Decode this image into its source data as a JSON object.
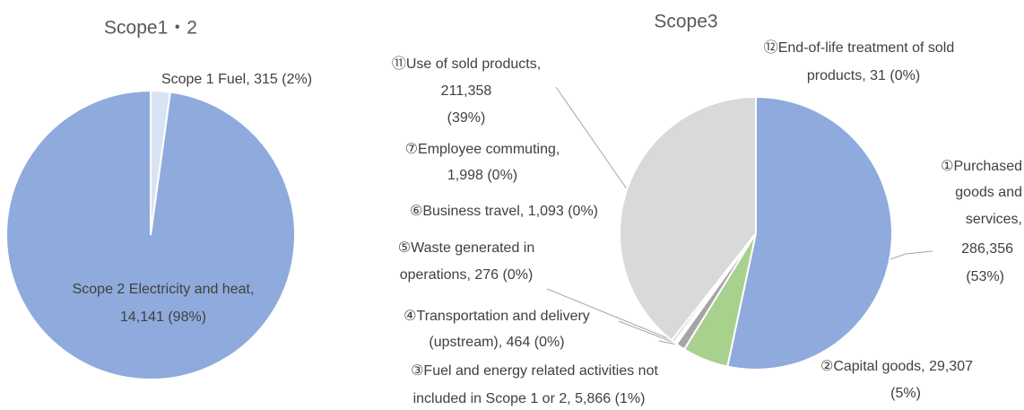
{
  "chart_data": [
    {
      "type": "pie",
      "title": "Scope1・2",
      "values": [
        315,
        14141
      ],
      "colors": [
        "#dae3f3",
        "#8faadc"
      ],
      "labels": [
        [
          "Scope 1 Fuel, 315 (2%)"
        ],
        [
          "Scope 2 Electricity and heat,",
          "14,141 (98%)"
        ]
      ]
    },
    {
      "type": "pie",
      "title": "Scope3",
      "values": [
        286356,
        29307,
        5866,
        464,
        276,
        1093,
        1998,
        211358,
        31
      ],
      "colors": [
        "#8faadc",
        "#a9d18e",
        "#a5a5a5",
        "#bfbfbf",
        "#c9c9c9",
        "#d0d0d0",
        "#d5d5d5",
        "#d9d9d9",
        "#e7e6e6"
      ],
      "labels": [
        [
          "①Purchased",
          "goods and",
          "services,",
          "286,356",
          "(53%)"
        ],
        [
          "②Capital goods, 29,307",
          "(5%)"
        ],
        [
          "③Fuel and energy related activities not",
          "included in Scope 1 or 2, 5,866 (1%)"
        ],
        [
          "④Transportation and delivery",
          "(upstream), 464 (0%)"
        ],
        [
          "⑤Waste generated in",
          "operations, 276 (0%)"
        ],
        [
          "⑥Business travel, 1,093 (0%)"
        ],
        [
          "⑦Employee commuting,",
          "1,998 (0%)"
        ],
        [
          "⑪Use of sold products,",
          "211,358",
          "(39%)"
        ],
        [
          "⑫End-of-life treatment of sold",
          "products, 31 (0%)"
        ]
      ]
    }
  ]
}
